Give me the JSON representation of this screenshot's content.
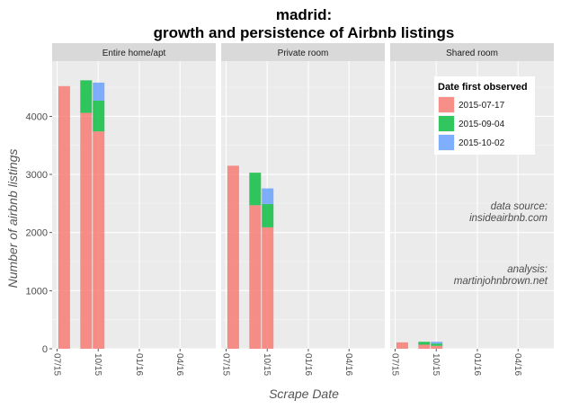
{
  "chart_data": {
    "type": "bar",
    "stacked": true,
    "title_line1": "madrid:",
    "title_line2": "growth and persistence of Airbnb listings",
    "xlabel": "Scrape Date",
    "ylabel": "Number of airbnb listings",
    "ylim": [
      0,
      4950
    ],
    "y_ticks": [
      0,
      1000,
      2000,
      3000,
      4000
    ],
    "x_range": [
      "2015-06-20",
      "2016-06-20"
    ],
    "x_ticks": [
      {
        "date": "2015-07-01",
        "label": "07/15"
      },
      {
        "date": "2015-10-01",
        "label": "10/15"
      },
      {
        "date": "2016-01-01",
        "label": "01/16"
      },
      {
        "date": "2016-04-01",
        "label": "04/16"
      }
    ],
    "grid": true,
    "legend_position": "top-right",
    "legend": {
      "title": "Date first observed",
      "entries": [
        {
          "label": "2015-07-17",
          "color": "#f8766d"
        },
        {
          "label": "2015-09-04",
          "color": "#00ba38"
        },
        {
          "label": "2015-10-02",
          "color": "#619cff"
        }
      ]
    },
    "annotations": {
      "source_line1": "data source:",
      "source_line2": "insideairbnb.com",
      "analysis_line1": "analysis:",
      "analysis_line2": "martinjohnbrown.net"
    },
    "scrape_dates": [
      "2015-07-17",
      "2015-09-04",
      "2015-10-02"
    ],
    "panels": [
      {
        "name": "Entire home/apt",
        "stacks": [
          [
            4520,
            0,
            0
          ],
          [
            4060,
            560,
            0
          ],
          [
            3740,
            530,
            310
          ]
        ]
      },
      {
        "name": "Private room",
        "stacks": [
          [
            3150,
            0,
            0
          ],
          [
            2470,
            560,
            0
          ],
          [
            2090,
            400,
            270
          ]
        ]
      },
      {
        "name": "Shared room",
        "stacks": [
          [
            110,
            0,
            0
          ],
          [
            70,
            50,
            0
          ],
          [
            50,
            40,
            30
          ]
        ]
      }
    ]
  }
}
